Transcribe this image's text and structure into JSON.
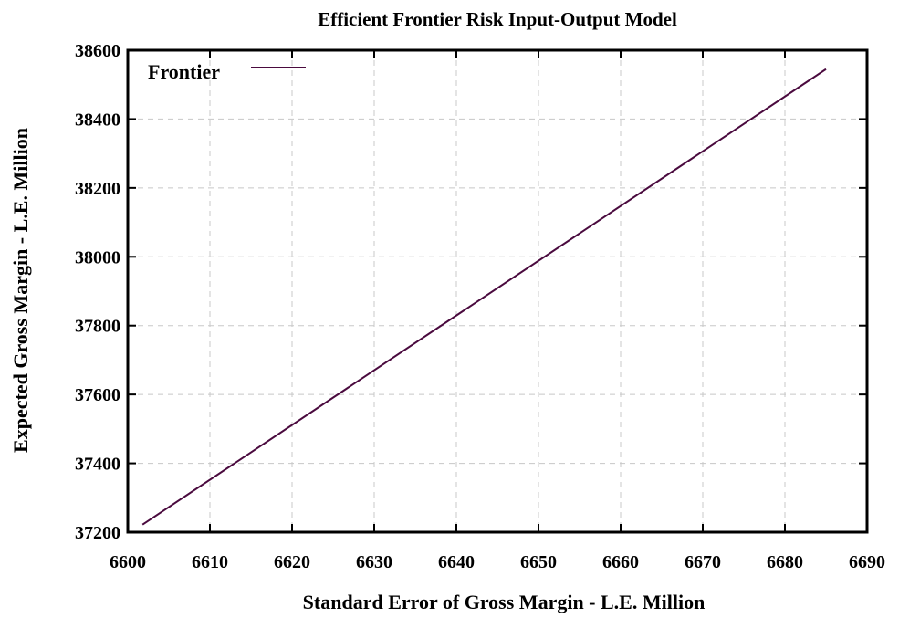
{
  "chart_data": {
    "type": "line",
    "title": "Efficient Frontier Risk Input-Output Model",
    "xlabel": "Standard Error of Gross Margin - L.E. Million",
    "ylabel": "Expected Gross Margin - L.E. Million",
    "xlim": [
      6600,
      6690
    ],
    "ylim": [
      37200,
      38600
    ],
    "x_ticks": [
      6600,
      6610,
      6620,
      6630,
      6640,
      6650,
      6660,
      6670,
      6680,
      6690
    ],
    "y_ticks": [
      37200,
      37400,
      37600,
      37800,
      38000,
      38200,
      38400,
      38600
    ],
    "grid": true,
    "legend_position": "top-left",
    "series": [
      {
        "name": "Frontier",
        "color": "#4a0a3e",
        "x": [
          6601.8,
          6685
        ],
        "y": [
          37222,
          38545
        ]
      }
    ]
  }
}
